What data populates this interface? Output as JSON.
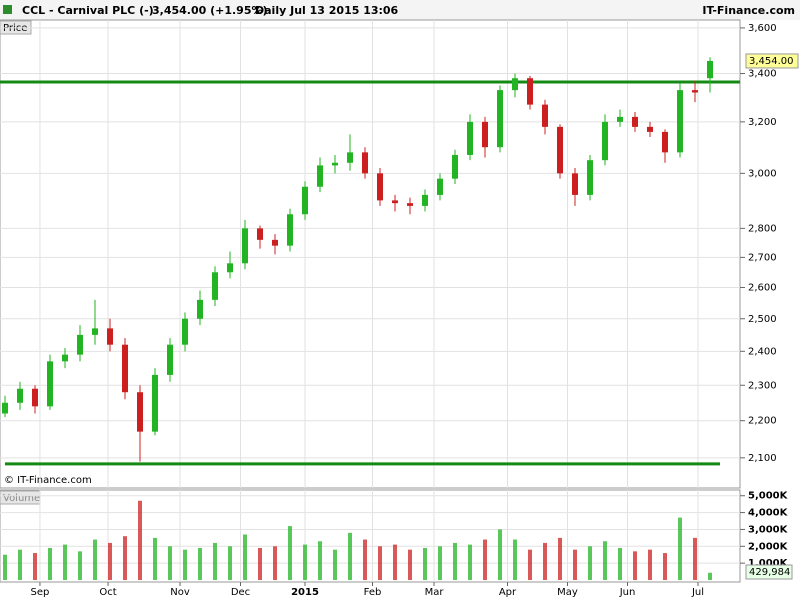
{
  "header": {
    "symbol": "CCL - Carnival PLC (-)",
    "quote": "3,454.00 (+1.95%)",
    "period": "Daily  Jul 13 2015 13:06",
    "site": "IT-Finance.com"
  },
  "chart_data": [
    {
      "type": "candlestick",
      "title": "Price",
      "credit": "© IT-Finance.com",
      "categories": [
        null,
        null,
        null,
        null,
        null,
        null,
        null,
        null,
        null,
        null,
        null,
        null,
        null,
        null,
        null,
        null,
        null,
        null,
        null,
        null,
        null,
        null,
        null,
        null,
        null,
        null,
        null,
        null,
        null,
        null,
        null,
        null,
        null,
        null,
        null,
        null,
        null,
        null,
        null,
        null,
        null,
        null,
        null,
        null,
        null,
        null,
        null,
        null
      ],
      "open": [
        2220,
        2250,
        2290,
        2240,
        2370,
        2390,
        2450,
        2470,
        2420,
        2280,
        2170,
        2330,
        2420,
        2500,
        2560,
        2650,
        2680,
        2800,
        2760,
        2740,
        2850,
        2950,
        3030,
        3040,
        3080,
        3000,
        2900,
        2890,
        2880,
        2920,
        2980,
        3070,
        3200,
        3100,
        3330,
        3380,
        3270,
        3180,
        3000,
        2920,
        3050,
        3200,
        3220,
        3180,
        3160,
        3080,
        3330,
        3380
      ],
      "high": [
        2270,
        2310,
        2300,
        2390,
        2410,
        2480,
        2560,
        2500,
        2440,
        2300,
        2350,
        2440,
        2520,
        2590,
        2670,
        2720,
        2830,
        2810,
        2780,
        2870,
        2970,
        3060,
        3070,
        3150,
        3100,
        3020,
        2920,
        2910,
        2940,
        3000,
        3090,
        3230,
        3220,
        3350,
        3400,
        3390,
        3290,
        3190,
        3020,
        3070,
        3230,
        3250,
        3240,
        3200,
        3170,
        3360,
        3370,
        3470
      ],
      "low": [
        2210,
        2230,
        2220,
        2230,
        2350,
        2370,
        2420,
        2400,
        2260,
        2090,
        2160,
        2310,
        2400,
        2480,
        2540,
        2630,
        2660,
        2730,
        2710,
        2720,
        2830,
        2930,
        3000,
        3010,
        2980,
        2880,
        2860,
        2850,
        2860,
        2900,
        2960,
        3050,
        3060,
        3080,
        3300,
        3250,
        3150,
        2980,
        2880,
        2900,
        3030,
        3180,
        3160,
        3140,
        3040,
        3060,
        3280,
        3320
      ],
      "close": [
        2250,
        2290,
        2240,
        2370,
        2390,
        2450,
        2470,
        2420,
        2280,
        2170,
        2330,
        2420,
        2500,
        2560,
        2650,
        2680,
        2800,
        2760,
        2740,
        2850,
        2950,
        3030,
        3040,
        3080,
        3000,
        2900,
        2890,
        2880,
        2920,
        2980,
        3070,
        3200,
        3100,
        3330,
        3380,
        3270,
        3180,
        3000,
        2920,
        3050,
        3200,
        3220,
        3180,
        3160,
        3080,
        3330,
        3320,
        3454
      ],
      "up_color": "#22b422",
      "down_color": "#cc2020",
      "log_scale": true,
      "grid": true,
      "ylim": [
        2022,
        3636
      ],
      "yticks": [
        {
          "value": 2100,
          "label": "2,100"
        },
        {
          "value": 2200,
          "label": "2,200"
        },
        {
          "value": 2300,
          "label": "2,300"
        },
        {
          "value": 2400,
          "label": "2,400"
        },
        {
          "value": 2500,
          "label": "2,500"
        },
        {
          "value": 2600,
          "label": "2,600"
        },
        {
          "value": 2700,
          "label": "2,700"
        },
        {
          "value": 2800,
          "label": "2,800"
        },
        {
          "value": 3000,
          "label": "3,000"
        },
        {
          "value": 3200,
          "label": "3,200"
        },
        {
          "value": 3400,
          "label": "3,400"
        },
        {
          "value": 3600,
          "label": "3,600"
        }
      ],
      "hlines": [
        3364,
        2084
      ],
      "hline_color": "#138a13",
      "last_value_label": "3,454.00"
    },
    {
      "type": "bar",
      "title": "Volume",
      "categories": [
        null,
        null,
        null,
        null,
        null,
        null,
        null,
        null,
        null,
        null,
        null,
        null,
        null,
        null,
        null,
        null,
        null,
        null,
        null,
        null,
        null,
        null,
        null,
        null,
        null,
        null,
        null,
        null,
        null,
        null,
        null,
        null,
        null,
        null,
        null,
        null,
        null,
        null,
        null,
        null,
        null,
        null,
        null,
        null,
        null,
        null,
        null,
        null
      ],
      "values": [
        1500000,
        1800000,
        1600000,
        1900000,
        2100000,
        1700000,
        2400000,
        2200000,
        2600000,
        4700000,
        2500000,
        2000000,
        1800000,
        1900000,
        2200000,
        2000000,
        2700000,
        1900000,
        2000000,
        3200000,
        2100000,
        2300000,
        1800000,
        2800000,
        2400000,
        2000000,
        2100000,
        1800000,
        1900000,
        2000000,
        2200000,
        2100000,
        2400000,
        3000000,
        2400000,
        1800000,
        2200000,
        2500000,
        1800000,
        2000000,
        2300000,
        1900000,
        1700000,
        1800000,
        1600000,
        3700000,
        2500000,
        429984
      ],
      "ylim": [
        0,
        5400000
      ],
      "yticks": [
        {
          "value": 1000000,
          "label": "1,000K"
        },
        {
          "value": 2000000,
          "label": "2,000K"
        },
        {
          "value": 3000000,
          "label": "3,000K"
        },
        {
          "value": 4000000,
          "label": "4,000K"
        },
        {
          "value": 5000000,
          "label": "5,000K"
        }
      ],
      "last_value_label": "429,984",
      "xticks": [
        {
          "value": 2.33,
          "label": "Sep"
        },
        {
          "value": 6.87,
          "label": "Oct"
        },
        {
          "value": 11.67,
          "label": "Nov"
        },
        {
          "value": 15.7,
          "label": "Dec"
        },
        {
          "value": 20,
          "label": "2015"
        },
        {
          "value": 24.5,
          "label": "Feb"
        },
        {
          "value": 28.6,
          "label": "Mar"
        },
        {
          "value": 33.5,
          "label": "Apr"
        },
        {
          "value": 37.5,
          "label": "May"
        },
        {
          "value": 41.5,
          "label": "Jun"
        },
        {
          "value": 46.2,
          "label": "Jul"
        }
      ]
    }
  ]
}
